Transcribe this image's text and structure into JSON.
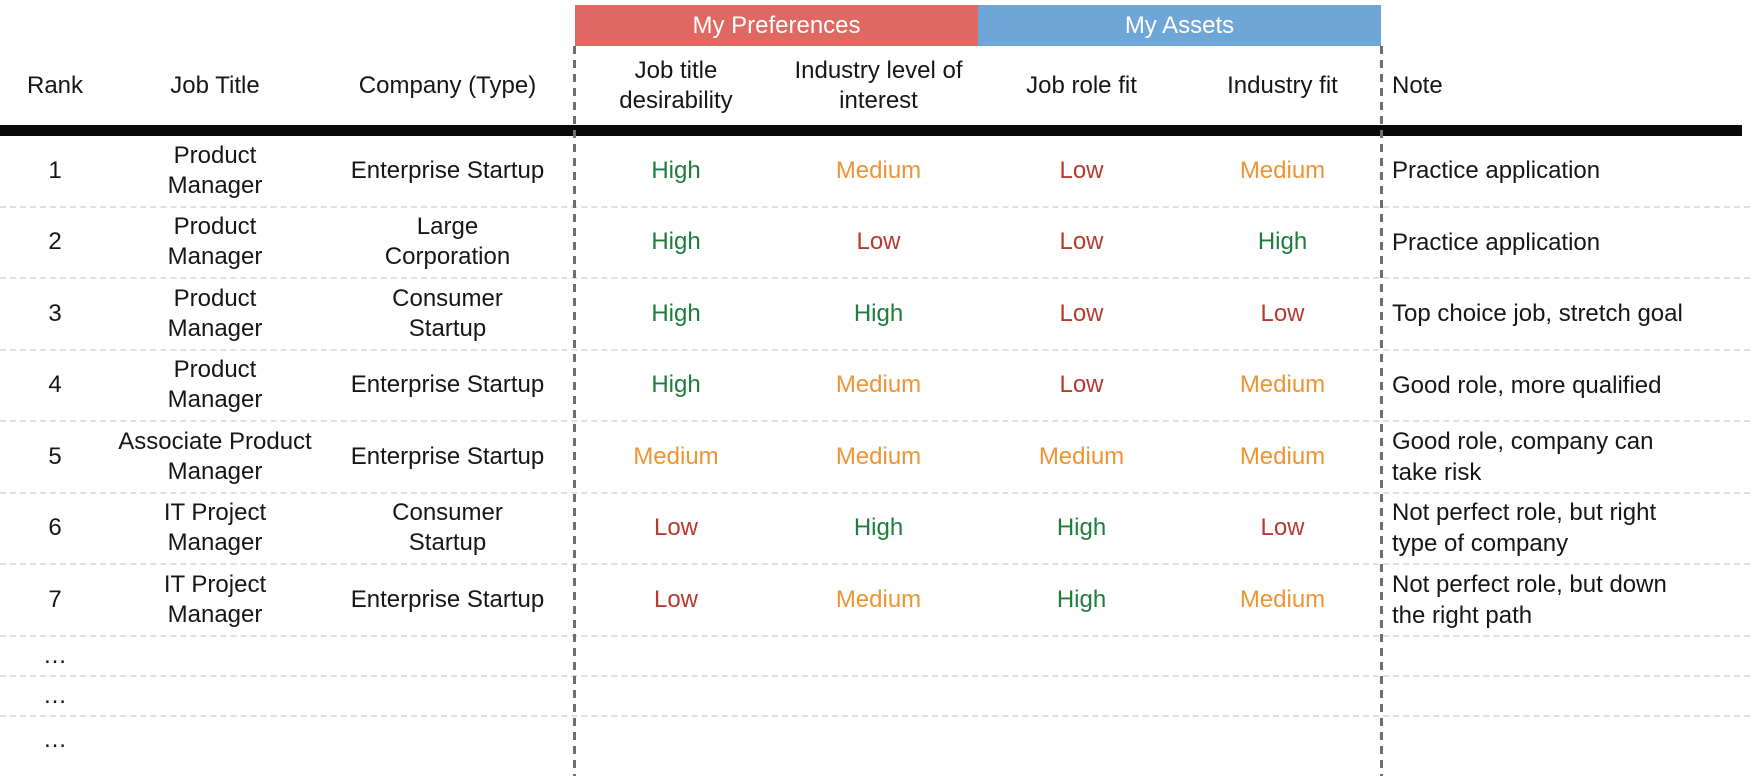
{
  "colors": {
    "preferences_band": "#df6862",
    "assets_band": "#6fa6d8",
    "level_high": "#1f7d3c",
    "level_medium": "#ed9435",
    "level_low": "#b63a31"
  },
  "group_headers": {
    "preferences": "My Preferences",
    "assets": "My Assets"
  },
  "columns": {
    "rank": "Rank",
    "job_title": "Job Title",
    "company": "Company (Type)",
    "pref1": "Job title desirability",
    "pref2": "Industry level of interest",
    "asset1": "Job role fit",
    "asset2": "Industry fit",
    "note": "Note"
  },
  "rows": [
    {
      "rank": "1",
      "job_title": "Product\nManager",
      "company": "Enterprise Startup",
      "pref1": "High",
      "pref2": "Medium",
      "asset1": "Low",
      "asset2": "Medium",
      "note": "Practice application"
    },
    {
      "rank": "2",
      "job_title": "Product\nManager",
      "company": "Large\nCorporation",
      "pref1": "High",
      "pref2": "Low",
      "asset1": "Low",
      "asset2": "High",
      "note": "Practice application"
    },
    {
      "rank": "3",
      "job_title": "Product\nManager",
      "company": "Consumer\nStartup",
      "pref1": "High",
      "pref2": "High",
      "asset1": "Low",
      "asset2": "Low",
      "note": "Top choice job, stretch goal"
    },
    {
      "rank": "4",
      "job_title": "Product\nManager",
      "company": "Enterprise Startup",
      "pref1": "High",
      "pref2": "Medium",
      "asset1": "Low",
      "asset2": "Medium",
      "note": "Good role, more qualified"
    },
    {
      "rank": "5",
      "job_title": "Associate Product\nManager",
      "company": "Enterprise Startup",
      "pref1": "Medium",
      "pref2": "Medium",
      "asset1": "Medium",
      "asset2": "Medium",
      "note": "Good role, company can\ntake risk"
    },
    {
      "rank": "6",
      "job_title": "IT Project\nManager",
      "company": "Consumer\nStartup",
      "pref1": "Low",
      "pref2": "High",
      "asset1": "High",
      "asset2": "Low",
      "note": "Not perfect role, but right\ntype of company"
    },
    {
      "rank": "7",
      "job_title": "IT Project\nManager",
      "company": "Enterprise Startup",
      "pref1": "Low",
      "pref2": "Medium",
      "asset1": "High",
      "asset2": "Medium",
      "note": "Not perfect role, but down\nthe right path"
    }
  ],
  "ellipsis_rows": [
    {
      "rank": "…"
    },
    {
      "rank": "…"
    },
    {
      "rank": "…"
    }
  ],
  "chart_data": {
    "type": "table",
    "title": "Job application ranking table",
    "column_groups": [
      {
        "label": "My Preferences",
        "columns": [
          "Job title desirability",
          "Industry level of interest"
        ]
      },
      {
        "label": "My Assets",
        "columns": [
          "Job role fit",
          "Industry fit"
        ]
      }
    ],
    "columns": [
      "Rank",
      "Job Title",
      "Company (Type)",
      "Job title desirability",
      "Industry level of interest",
      "Job role fit",
      "Industry fit",
      "Note"
    ],
    "rows": [
      [
        "1",
        "Product Manager",
        "Enterprise Startup",
        "High",
        "Medium",
        "Low",
        "Medium",
        "Practice application"
      ],
      [
        "2",
        "Product Manager",
        "Large Corporation",
        "High",
        "Low",
        "Low",
        "High",
        "Practice application"
      ],
      [
        "3",
        "Product Manager",
        "Consumer Startup",
        "High",
        "High",
        "Low",
        "Low",
        "Top choice job, stretch goal"
      ],
      [
        "4",
        "Product Manager",
        "Enterprise Startup",
        "High",
        "Medium",
        "Low",
        "Medium",
        "Good role, more qualified"
      ],
      [
        "5",
        "Associate Product Manager",
        "Enterprise Startup",
        "Medium",
        "Medium",
        "Medium",
        "Medium",
        "Good role, company can take risk"
      ],
      [
        "6",
        "IT Project Manager",
        "Consumer Startup",
        "Low",
        "High",
        "High",
        "Low",
        "Not perfect role, but right type of company"
      ],
      [
        "7",
        "IT Project Manager",
        "Enterprise Startup",
        "Low",
        "Medium",
        "High",
        "Medium",
        "Not perfect role, but down the right path"
      ],
      [
        "…",
        "",
        "",
        "",
        "",
        "",
        "",
        ""
      ],
      [
        "…",
        "",
        "",
        "",
        "",
        "",
        "",
        ""
      ],
      [
        "…",
        "",
        "",
        "",
        "",
        "",
        "",
        ""
      ]
    ]
  }
}
